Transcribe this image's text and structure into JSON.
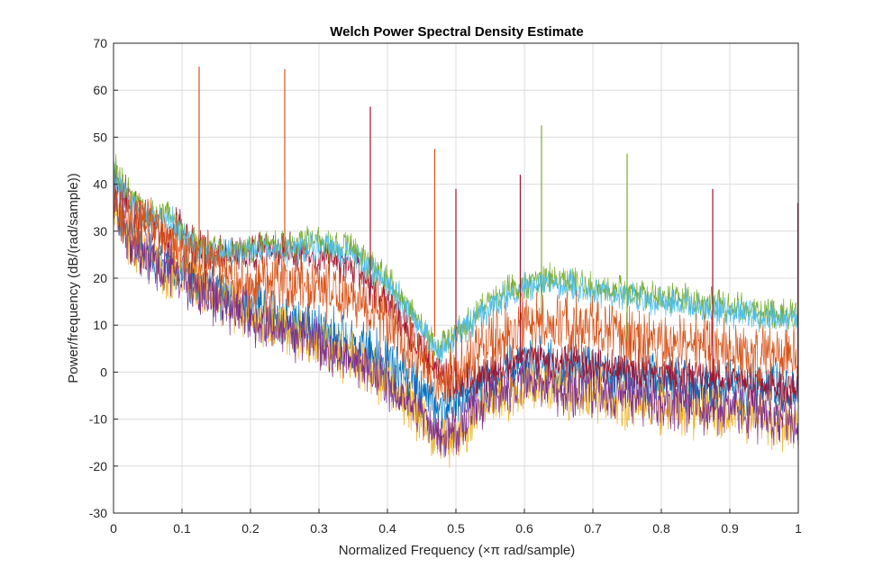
{
  "chart_data": {
    "type": "line",
    "title": "Welch Power Spectral Density Estimate",
    "xlabel": "Normalized Frequency  (×π rad/sample)",
    "ylabel": "Power/frequency (dB/(rad/sample))",
    "xlim": [
      0,
      1
    ],
    "ylim": [
      -30,
      70
    ],
    "x_ticks": [
      "0",
      "0.1",
      "0.2",
      "0.3",
      "0.4",
      "0.5",
      "0.6",
      "0.7",
      "0.8",
      "0.9",
      "1"
    ],
    "y_ticks": [
      "-30",
      "-20",
      "-10",
      "0",
      "10",
      "20",
      "30",
      "40",
      "50",
      "60",
      "70"
    ],
    "grid": true,
    "series": [
      {
        "color": "#0072BD",
        "noise": 7,
        "baseline": [
          [
            0,
            38
          ],
          [
            0.02,
            30
          ],
          [
            0.05,
            25
          ],
          [
            0.1,
            21
          ],
          [
            0.15,
            17
          ],
          [
            0.2,
            14
          ],
          [
            0.25,
            11
          ],
          [
            0.3,
            9
          ],
          [
            0.35,
            6
          ],
          [
            0.4,
            2
          ],
          [
            0.45,
            -4
          ],
          [
            0.47,
            -8
          ],
          [
            0.5,
            -6
          ],
          [
            0.55,
            -1
          ],
          [
            0.6,
            2
          ],
          [
            0.65,
            1
          ],
          [
            0.7,
            0
          ],
          [
            0.8,
            -2
          ],
          [
            0.9,
            -3
          ],
          [
            1,
            -4
          ]
        ]
      },
      {
        "color": "#EDB120",
        "noise": 7,
        "baseline": [
          [
            0,
            36
          ],
          [
            0.02,
            28
          ],
          [
            0.05,
            24
          ],
          [
            0.1,
            20
          ],
          [
            0.15,
            16
          ],
          [
            0.2,
            12
          ],
          [
            0.25,
            9
          ],
          [
            0.3,
            6
          ],
          [
            0.35,
            3
          ],
          [
            0.4,
            -2
          ],
          [
            0.45,
            -10
          ],
          [
            0.47,
            -15
          ],
          [
            0.5,
            -13
          ],
          [
            0.55,
            -6
          ],
          [
            0.6,
            -3
          ],
          [
            0.65,
            -4
          ],
          [
            0.7,
            -5
          ],
          [
            0.8,
            -7
          ],
          [
            0.9,
            -9
          ],
          [
            1,
            -11
          ]
        ]
      },
      {
        "color": "#7E2F8E",
        "noise": 7,
        "baseline": [
          [
            0,
            36
          ],
          [
            0.02,
            28
          ],
          [
            0.05,
            24
          ],
          [
            0.1,
            20
          ],
          [
            0.15,
            16
          ],
          [
            0.2,
            12
          ],
          [
            0.25,
            9
          ],
          [
            0.3,
            6
          ],
          [
            0.35,
            3
          ],
          [
            0.4,
            -2
          ],
          [
            0.45,
            -9
          ],
          [
            0.47,
            -14
          ],
          [
            0.5,
            -12
          ],
          [
            0.55,
            -5
          ],
          [
            0.6,
            -2
          ],
          [
            0.65,
            -3
          ],
          [
            0.7,
            -4
          ],
          [
            0.8,
            -6
          ],
          [
            0.9,
            -8
          ],
          [
            1,
            -10
          ]
        ]
      },
      {
        "color": "#A2142F",
        "noise": 5,
        "baseline": [
          [
            0,
            42
          ],
          [
            0.03,
            35
          ],
          [
            0.06,
            31
          ],
          [
            0.08,
            28
          ],
          [
            0.095,
            32
          ],
          [
            0.1,
            30
          ],
          [
            0.12,
            26
          ],
          [
            0.15,
            25
          ],
          [
            0.2,
            26
          ],
          [
            0.25,
            26
          ],
          [
            0.3,
            25
          ],
          [
            0.35,
            22
          ],
          [
            0.4,
            15
          ],
          [
            0.45,
            5
          ],
          [
            0.47,
            0
          ],
          [
            0.5,
            -3
          ],
          [
            0.55,
            0
          ],
          [
            0.6,
            3
          ],
          [
            0.65,
            2
          ],
          [
            0.7,
            1
          ],
          [
            0.8,
            0
          ],
          [
            0.9,
            -2
          ],
          [
            1,
            -4
          ]
        ]
      },
      {
        "color": "#77AC30",
        "noise": 4,
        "baseline": [
          [
            0,
            44
          ],
          [
            0.03,
            36
          ],
          [
            0.06,
            33
          ],
          [
            0.08,
            34
          ],
          [
            0.1,
            30
          ],
          [
            0.12,
            27
          ],
          [
            0.15,
            26
          ],
          [
            0.2,
            27
          ],
          [
            0.25,
            27
          ],
          [
            0.3,
            28
          ],
          [
            0.35,
            26
          ],
          [
            0.4,
            20
          ],
          [
            0.45,
            10
          ],
          [
            0.47,
            5
          ],
          [
            0.5,
            8
          ],
          [
            0.55,
            15
          ],
          [
            0.6,
            19
          ],
          [
            0.65,
            20
          ],
          [
            0.7,
            18
          ],
          [
            0.8,
            16
          ],
          [
            0.9,
            14
          ],
          [
            1,
            12
          ]
        ]
      },
      {
        "color": "#4DBEEE",
        "noise": 4,
        "baseline": [
          [
            0,
            43
          ],
          [
            0.03,
            35
          ],
          [
            0.06,
            32
          ],
          [
            0.08,
            33
          ],
          [
            0.1,
            29
          ],
          [
            0.12,
            26
          ],
          [
            0.15,
            25
          ],
          [
            0.2,
            26
          ],
          [
            0.25,
            26
          ],
          [
            0.3,
            27
          ],
          [
            0.35,
            25
          ],
          [
            0.4,
            19
          ],
          [
            0.45,
            9
          ],
          [
            0.47,
            4
          ],
          [
            0.5,
            7
          ],
          [
            0.55,
            14
          ],
          [
            0.6,
            18
          ],
          [
            0.65,
            19
          ],
          [
            0.7,
            17
          ],
          [
            0.8,
            15
          ],
          [
            0.9,
            13
          ],
          [
            1,
            11
          ]
        ]
      },
      {
        "color": "#D95319",
        "noise": 8,
        "baseline": [
          [
            0,
            36
          ],
          [
            0.02,
            33
          ],
          [
            0.05,
            31
          ],
          [
            0.1,
            26
          ],
          [
            0.15,
            22
          ],
          [
            0.2,
            19
          ],
          [
            0.25,
            19
          ],
          [
            0.3,
            18
          ],
          [
            0.35,
            16
          ],
          [
            0.4,
            10
          ],
          [
            0.45,
            3
          ],
          [
            0.47,
            -2
          ],
          [
            0.5,
            0
          ],
          [
            0.55,
            6
          ],
          [
            0.6,
            10
          ],
          [
            0.65,
            11
          ],
          [
            0.7,
            9
          ],
          [
            0.8,
            6
          ],
          [
            0.9,
            5
          ],
          [
            1,
            3
          ]
        ]
      }
    ],
    "peaks": [
      {
        "x": 0.125,
        "y": 65,
        "color": "#D95319"
      },
      {
        "x": 0.25,
        "y": 64.5,
        "color": "#D95319"
      },
      {
        "x": 0.375,
        "y": 56.5,
        "color": "#A2142F"
      },
      {
        "x": 0.469,
        "y": 47.5,
        "color": "#D95319"
      },
      {
        "x": 0.5,
        "y": 39,
        "color": "#A2142F"
      },
      {
        "x": 0.594,
        "y": 42,
        "color": "#A2142F"
      },
      {
        "x": 0.625,
        "y": 52.5,
        "color": "#77AC30"
      },
      {
        "x": 0.75,
        "y": 46.5,
        "color": "#77AC30"
      },
      {
        "x": 0.875,
        "y": 39,
        "color": "#A2142F"
      },
      {
        "x": 1.0,
        "y": 36,
        "color": "#A2142F"
      }
    ]
  }
}
